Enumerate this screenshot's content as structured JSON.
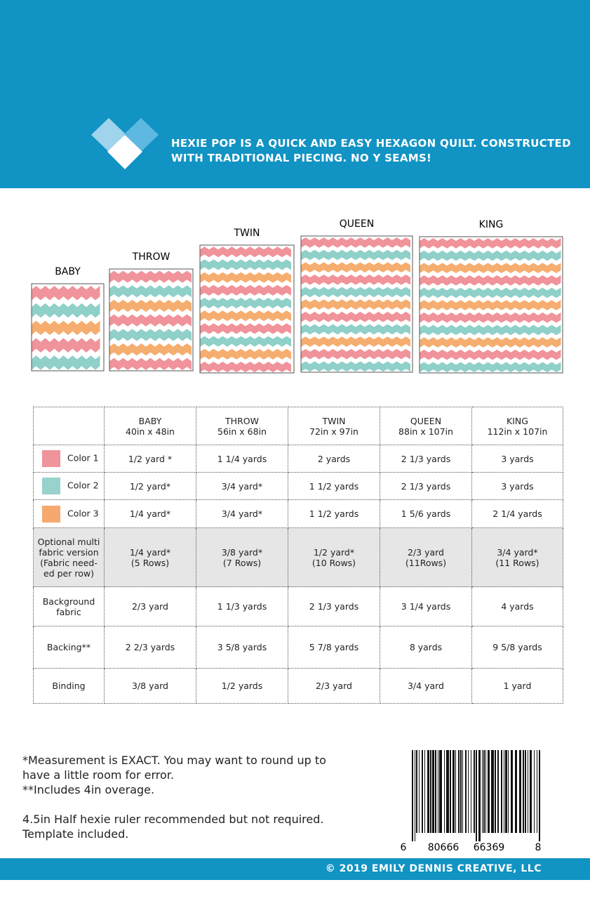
{
  "header": {
    "tagline": [
      "HEXIE POP IS A QUICK AND EASY HEXAGON QUILT.  CONSTRUCTED",
      "WITH TRADITIONAL PIECING. NO Y SEAMS!"
    ]
  },
  "quilts": [
    {
      "label": "BABY"
    },
    {
      "label": "THROW"
    },
    {
      "label": "TWIN"
    },
    {
      "label": "QUEEN"
    },
    {
      "label": "KING"
    }
  ],
  "table": {
    "columns": [
      {
        "name": "BABY",
        "size": "40in x 48in"
      },
      {
        "name": "THROW",
        "size": "56in x 68in"
      },
      {
        "name": "TWIN",
        "size": "72in x 97in"
      },
      {
        "name": "QUEEN",
        "size": "88in x 107in"
      },
      {
        "name": "KING",
        "size": "112in x 107in"
      }
    ],
    "rows": [
      {
        "label": [
          "Color 1"
        ],
        "swatch": "#f0939a",
        "cells": [
          [
            "1/2 yard *"
          ],
          [
            "1 1/4 yards"
          ],
          [
            "2 yards"
          ],
          [
            "2 1/3 yards"
          ],
          [
            "3 yards"
          ]
        ]
      },
      {
        "label": [
          "Color 2"
        ],
        "swatch": "#97d2cc",
        "cells": [
          [
            "1/2 yard*"
          ],
          [
            "3/4 yard*"
          ],
          [
            "1 1/2 yards"
          ],
          [
            "2 1/3 yards"
          ],
          [
            "3 yards"
          ]
        ]
      },
      {
        "label": [
          "Color 3"
        ],
        "swatch": "#f5a96f",
        "cells": [
          [
            "1/4 yard*"
          ],
          [
            "3/4 yard*"
          ],
          [
            "1 1/2 yards"
          ],
          [
            "1 5/6 yards"
          ],
          [
            "2 1/4 yards"
          ]
        ]
      },
      {
        "label": [
          "Optional multi",
          "fabric version",
          "(Fabric need-",
          "ed per row)"
        ],
        "cells": [
          [
            "1/4 yard*",
            "(5 Rows)"
          ],
          [
            "3/8 yard*",
            "(7 Rows)"
          ],
          [
            "1/2 yard*",
            "(10 Rows)"
          ],
          [
            "2/3 yard",
            "(11Rows)"
          ],
          [
            "3/4 yard*",
            "(11 Rows)"
          ]
        ]
      },
      {
        "label": [
          "Background",
          "fabric"
        ],
        "cells": [
          [
            "2/3 yard"
          ],
          [
            "1 1/3 yards"
          ],
          [
            "2 1/3 yards"
          ],
          [
            "3 1/4 yards"
          ],
          [
            "4 yards"
          ]
        ]
      },
      {
        "label": [
          "Backing**"
        ],
        "cells": [
          [
            "2 2/3 yards"
          ],
          [
            "3 5/8 yards"
          ],
          [
            "5 7/8 yards"
          ],
          [
            "8 yards"
          ],
          [
            "9 5/8 yards"
          ]
        ]
      },
      {
        "label": [
          "Binding"
        ],
        "cells": [
          [
            "3/8 yard"
          ],
          [
            "1/2 yards"
          ],
          [
            "2/3 yard"
          ],
          [
            "3/4 yard"
          ],
          [
            "1 yard"
          ]
        ]
      }
    ]
  },
  "notes": [
    "*Measurement is EXACT.  You may want to round up to",
    "have a little room for error.",
    "**Includes 4in overage.",
    "4.5in Half hexie ruler recommended but not required.",
    "Template included."
  ],
  "barcode": {
    "digits": [
      "6",
      "80666",
      "66369",
      "8"
    ]
  },
  "footer": {
    "copyright": "© 2019 EMILY DENNIS CREATIVE, LLC"
  }
}
